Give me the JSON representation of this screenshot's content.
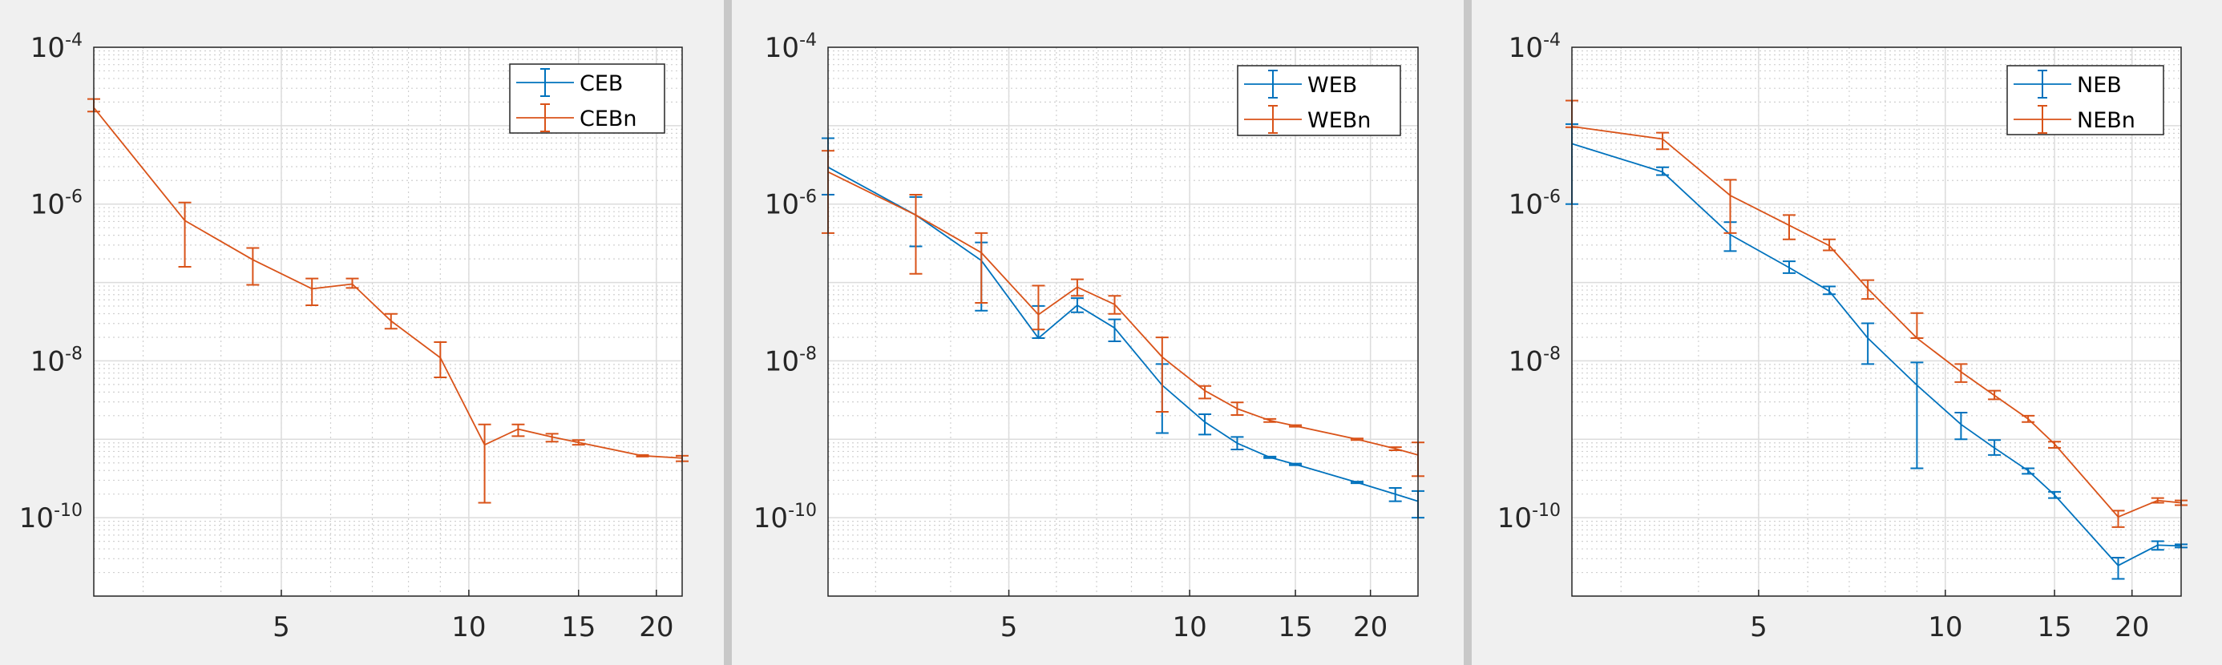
{
  "colors": {
    "series1": "#0072BD",
    "series2": "#D95319",
    "background": "#f0f0f0",
    "divider": "#c8c8c8"
  },
  "chart_data": [
    {
      "type": "line",
      "title": "",
      "xscale": "log",
      "yscale": "log",
      "xlim": [
        2.5,
        22
      ],
      "ylim": [
        1e-11,
        0.0001
      ],
      "xticks": [
        "5",
        "10",
        "15",
        "20"
      ],
      "xtick_values": [
        5,
        10,
        15,
        20
      ],
      "yticks": [
        {
          "base": "10",
          "exp": "-4"
        },
        {
          "base": "10",
          "exp": "-6"
        },
        {
          "base": "10",
          "exp": "-8"
        },
        {
          "base": "10",
          "exp": "-10"
        }
      ],
      "ytick_exponents": [
        -4,
        -6,
        -8,
        -10
      ],
      "grid": true,
      "legend_placement": "top-right",
      "x": [
        2.5,
        3.5,
        4.5,
        5.6,
        6.5,
        7.5,
        9,
        10.6,
        12,
        13.6,
        15,
        19,
        22
      ],
      "series": [
        {
          "name": "CEB",
          "color": "#0072BD",
          "y_log10": [],
          "err_high_log10": [],
          "err_low_log10": []
        },
        {
          "name": "CEBn",
          "color": "#D95319",
          "y_log10": [
            -4.77,
            -6.21,
            -6.71,
            -7.08,
            -7.02,
            -7.49,
            -7.96,
            -9.07,
            -8.87,
            -8.97,
            -9.04,
            -9.21,
            -9.24
          ],
          "err_high_log10": [
            -4.66,
            -5.98,
            -6.56,
            -6.95,
            -6.95,
            -7.4,
            -7.76,
            -8.81,
            -8.81,
            -8.93,
            -9.01,
            -9.2,
            -9.21
          ],
          "err_low_log10": [
            -4.82,
            -6.8,
            -7.03,
            -7.29,
            -7.07,
            -7.59,
            -8.21,
            -9.81,
            -8.96,
            -9.03,
            -9.07,
            -9.22,
            -9.28
          ]
        }
      ]
    },
    {
      "type": "line",
      "title": "",
      "xscale": "log",
      "yscale": "log",
      "xlim": [
        2.5,
        24
      ],
      "ylim": [
        1e-11,
        0.0001
      ],
      "xticks": [
        "5",
        "10",
        "15",
        "20"
      ],
      "xtick_values": [
        5,
        10,
        15,
        20
      ],
      "yticks": [
        {
          "base": "10",
          "exp": "-4"
        },
        {
          "base": "10",
          "exp": "-6"
        },
        {
          "base": "10",
          "exp": "-8"
        },
        {
          "base": "10",
          "exp": "-10"
        }
      ],
      "ytick_exponents": [
        -4,
        -6,
        -8,
        -10
      ],
      "grid": true,
      "legend_placement": "top-right",
      "x": [
        2.5,
        3.5,
        4.5,
        5.6,
        6.5,
        7.5,
        9,
        10.6,
        12,
        13.6,
        15,
        19,
        22,
        24
      ],
      "series": [
        {
          "name": "WEB",
          "color": "#0072BD",
          "y_log10": [
            -5.53,
            -6.14,
            -6.72,
            -7.71,
            -7.29,
            -7.58,
            -8.31,
            -8.78,
            -9.05,
            -9.23,
            -9.32,
            -9.55,
            -9.7,
            -9.79
          ],
          "err_high_log10": [
            -5.16,
            -5.91,
            -6.49,
            -7.3,
            -7.2,
            -7.47,
            -8.04,
            -8.68,
            -8.97,
            -9.22,
            -9.31,
            -9.54,
            -9.62,
            -9.66
          ],
          "err_low_log10": [
            -5.88,
            -6.54,
            -7.36,
            -7.71,
            -7.38,
            -7.75,
            -8.92,
            -8.94,
            -9.13,
            -9.24,
            -9.33,
            -9.56,
            -9.79,
            -10.0
          ]
        },
        {
          "name": "WEBn",
          "color": "#D95319",
          "y_log10": [
            -5.59,
            -6.14,
            -6.62,
            -7.41,
            -7.06,
            -7.28,
            -7.95,
            -8.38,
            -8.61,
            -8.76,
            -8.83,
            -9.0,
            -9.12,
            -9.2
          ],
          "err_high_log10": [
            -5.32,
            -5.88,
            -6.37,
            -7.04,
            -6.96,
            -7.17,
            -7.7,
            -8.32,
            -8.53,
            -8.74,
            -8.82,
            -8.99,
            -9.1,
            -9.04
          ],
          "err_low_log10": [
            -6.37,
            -6.89,
            -7.26,
            -7.6,
            -7.17,
            -7.4,
            -8.65,
            -8.48,
            -8.69,
            -8.78,
            -8.84,
            -9.01,
            -9.14,
            -9.47
          ]
        }
      ]
    },
    {
      "type": "line",
      "title": "",
      "xscale": "log",
      "yscale": "log",
      "xlim": [
        2.5,
        24
      ],
      "ylim": [
        1e-11,
        0.0001
      ],
      "xticks": [
        "5",
        "10",
        "15",
        "20"
      ],
      "xtick_values": [
        5,
        10,
        15,
        20
      ],
      "yticks": [
        {
          "base": "10",
          "exp": "-4"
        },
        {
          "base": "10",
          "exp": "-6"
        },
        {
          "base": "10",
          "exp": "-8"
        },
        {
          "base": "10",
          "exp": "-10"
        }
      ],
      "ytick_exponents": [
        -4,
        -6,
        -8,
        -10
      ],
      "grid": true,
      "legend_placement": "top-right",
      "x": [
        2.5,
        3.5,
        4.5,
        5.6,
        6.5,
        7.5,
        9,
        10.6,
        12,
        13.6,
        15,
        19,
        22,
        24
      ],
      "series": [
        {
          "name": "NEB",
          "color": "#0072BD",
          "y_log10": [
            -5.23,
            -5.59,
            -6.39,
            -6.81,
            -7.11,
            -7.71,
            -8.31,
            -8.81,
            -9.11,
            -9.4,
            -9.71,
            -10.61,
            -10.35,
            -10.36
          ],
          "err_high_log10": [
            -4.98,
            -5.53,
            -6.23,
            -6.73,
            -7.05,
            -7.52,
            -8.02,
            -8.66,
            -9.01,
            -9.37,
            -9.67,
            -10.51,
            -10.3,
            -10.34
          ],
          "err_low_log10": [
            -6.0,
            -5.63,
            -6.6,
            -6.88,
            -7.15,
            -8.04,
            -9.37,
            -9.0,
            -9.2,
            -9.44,
            -9.75,
            -10.78,
            -10.41,
            -10.38
          ]
        },
        {
          "name": "NEBn",
          "color": "#D95319",
          "y_log10": [
            -5.01,
            -5.17,
            -5.89,
            -6.27,
            -6.53,
            -7.08,
            -7.71,
            -8.14,
            -8.44,
            -8.74,
            -9.06,
            -9.99,
            -9.78,
            -9.81
          ],
          "err_high_log10": [
            -4.68,
            -5.09,
            -5.69,
            -6.14,
            -6.45,
            -6.97,
            -7.39,
            -8.04,
            -8.38,
            -8.7,
            -9.03,
            -9.91,
            -9.75,
            -9.78
          ],
          "err_low_log10": [
            -5.02,
            -5.3,
            -6.37,
            -6.45,
            -6.59,
            -7.21,
            -7.71,
            -8.27,
            -8.49,
            -8.78,
            -9.11,
            -10.12,
            -9.81,
            -9.84
          ]
        }
      ]
    }
  ]
}
